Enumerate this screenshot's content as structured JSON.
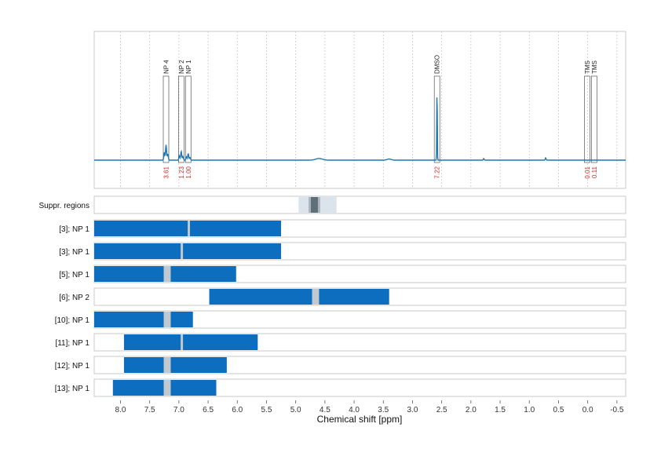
{
  "chart_data": {
    "type": "nmr-spectrum",
    "xlabel": "Chemical shift [ppm]",
    "xlim": [
      8.45,
      -0.65
    ],
    "x_ticks": [
      "8.0",
      "7.5",
      "7.0",
      "6.5",
      "6.0",
      "5.5",
      "5.0",
      "4.5",
      "4.0",
      "3.5",
      "3.0",
      "2.5",
      "2.0",
      "1.5",
      "1.0",
      "0.5",
      "0.0",
      "-0.5"
    ],
    "tick_values": [
      8.0,
      7.5,
      7.0,
      6.5,
      6.0,
      5.5,
      5.0,
      4.5,
      4.0,
      3.5,
      3.0,
      2.5,
      2.0,
      1.5,
      1.0,
      0.5,
      0.0,
      -0.5
    ],
    "line_color": "#1f77b4",
    "region_color": "#0d6ebf",
    "gap_color": "#c0c8d0",
    "peaks": [
      {
        "label": "NP 4",
        "ppm": 7.22,
        "height": 0.14,
        "integral": "3.61"
      },
      {
        "label": "NP 2",
        "ppm": 6.96,
        "height": 0.08,
        "integral": "1.23"
      },
      {
        "label": "NP 1",
        "ppm": 6.84,
        "height": 0.06,
        "integral": "1.00"
      },
      {
        "label": "DMSO",
        "ppm": 2.58,
        "height": 0.7,
        "integral": "7.22"
      },
      {
        "label": "TMS",
        "ppm": 0.01,
        "height": 0.0,
        "integral": "0.01"
      },
      {
        "label": "TMS",
        "ppm": -0.11,
        "height": 0.0,
        "integral": "0.11"
      }
    ],
    "suppressed_regions": {
      "label": "Suppr. regions",
      "outer": [
        4.95,
        4.3
      ],
      "inner": [
        4.78,
        4.58
      ],
      "core": [
        4.74,
        4.62
      ]
    },
    "regions": [
      {
        "label": "[3]; NP 1",
        "start": 8.45,
        "end": 5.25,
        "gap": [
          6.85,
          6.81
        ]
      },
      {
        "label": "[3]; NP 1",
        "start": 8.45,
        "end": 5.25,
        "gap": [
          6.97,
          6.93
        ]
      },
      {
        "label": "[5]; NP 1",
        "start": 8.45,
        "end": 6.02,
        "gap": [
          7.26,
          7.14
        ]
      },
      {
        "label": "[6]; NP 2",
        "start": 6.48,
        "end": 3.4,
        "gap": [
          4.72,
          4.6
        ]
      },
      {
        "label": "[10]; NP 1",
        "start": 8.45,
        "end": 6.76,
        "gap": [
          7.26,
          7.14
        ]
      },
      {
        "label": "[11]; NP 1",
        "start": 7.94,
        "end": 5.65,
        "gap": [
          6.97,
          6.93
        ]
      },
      {
        "label": "[12]; NP 1",
        "start": 7.94,
        "end": 6.18,
        "gap": [
          7.26,
          7.14
        ]
      },
      {
        "label": "[13]; NP 1",
        "start": 8.13,
        "end": 6.36,
        "gap": [
          7.26,
          7.14
        ]
      }
    ]
  }
}
